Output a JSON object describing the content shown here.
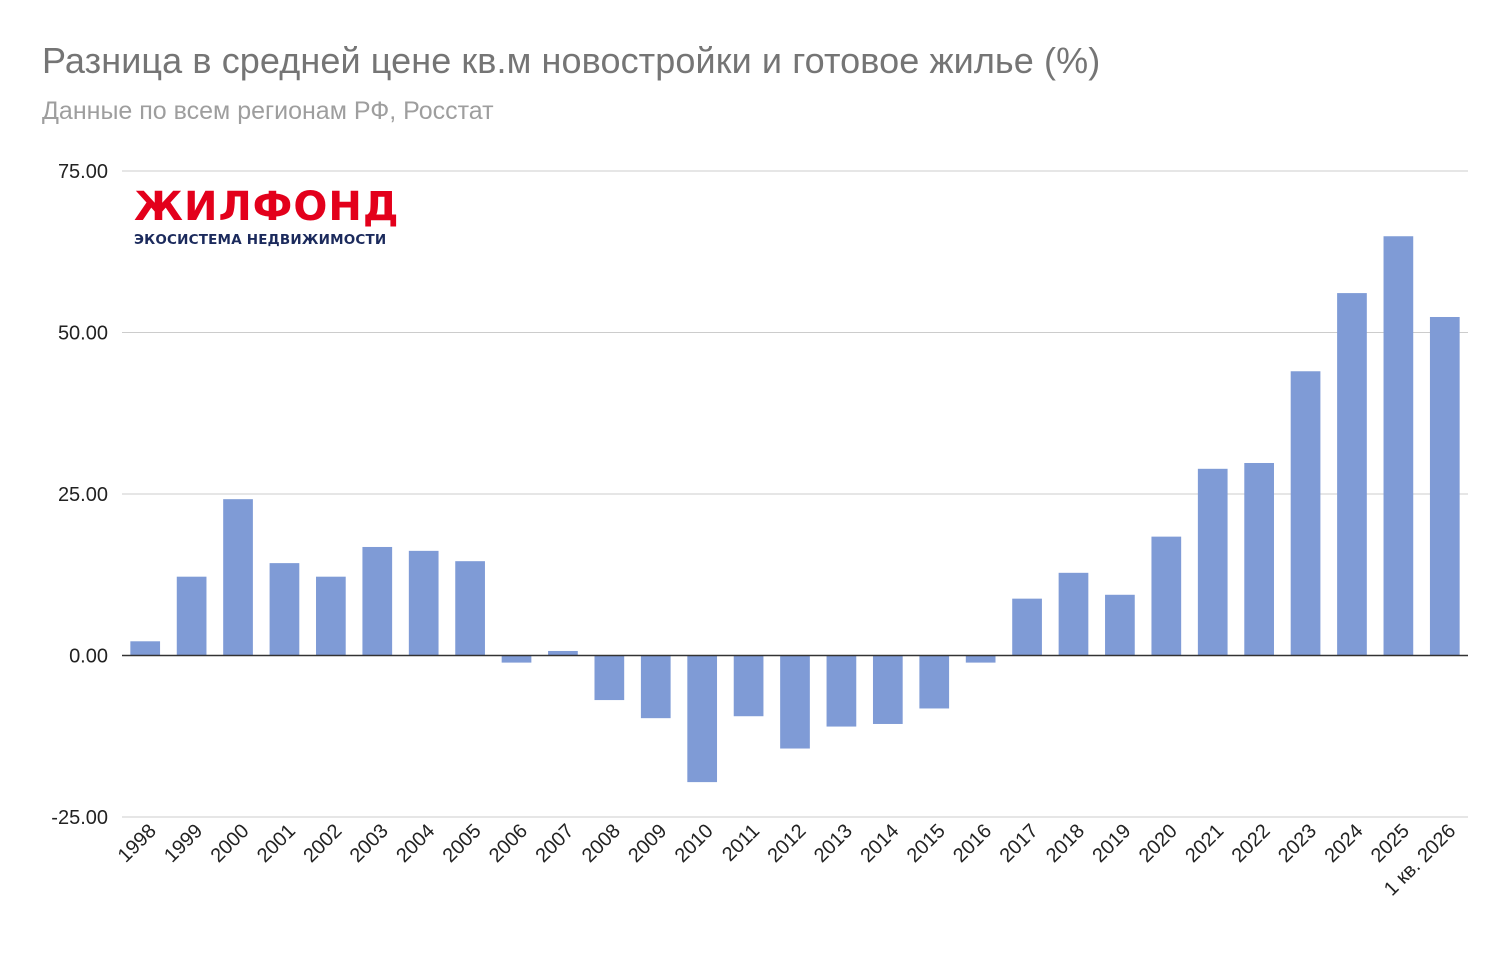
{
  "title": "Разница в средней цене кв.м новостройки и готовое жилье (%)",
  "subtitle": "Данные по всем регионам РФ, Росстат",
  "logo": {
    "main": "ЖИЛФОНД",
    "tagline": "ЭКОСИСТЕМА НЕДВИЖИМОСТИ"
  },
  "colors": {
    "bar": "#7f9bd6",
    "grid": "#cccccc",
    "zero_line": "#333333",
    "logo_red": "#e3001b",
    "logo_navy": "#1b2a5c"
  },
  "chart_data": {
    "type": "bar",
    "title": "Разница в средней цене кв.м новостройки и готовое жилье (%)",
    "subtitle": "Данные по всем регионам РФ, Росстат",
    "xlabel": "",
    "ylabel": "",
    "ylim": [
      -25,
      75
    ],
    "yticks": [
      "75.00",
      "50.00",
      "25.00",
      "0.00",
      "-25.00"
    ],
    "ytick_values": [
      75,
      50,
      25,
      0,
      -25
    ],
    "grid": true,
    "legend": "none",
    "categories": [
      "1998",
      "1999",
      "2000",
      "2001",
      "2002",
      "2003",
      "2004",
      "2005",
      "2006",
      "2007",
      "2008",
      "2009",
      "2010",
      "2011",
      "2012",
      "2013",
      "2014",
      "2015",
      "2016",
      "2017",
      "2018",
      "2019",
      "2020",
      "2021",
      "2022",
      "2023",
      "2024",
      "2025",
      "1 кв. 2026"
    ],
    "values": [
      2.2,
      12.2,
      24.2,
      14.3,
      12.2,
      16.8,
      16.2,
      14.6,
      -1.1,
      0.7,
      -6.9,
      -9.7,
      -19.6,
      -9.4,
      -14.4,
      -11.0,
      -10.6,
      -8.2,
      -1.1,
      8.8,
      12.8,
      9.4,
      18.4,
      28.9,
      29.8,
      44.0,
      56.1,
      64.9,
      52.4
    ]
  }
}
